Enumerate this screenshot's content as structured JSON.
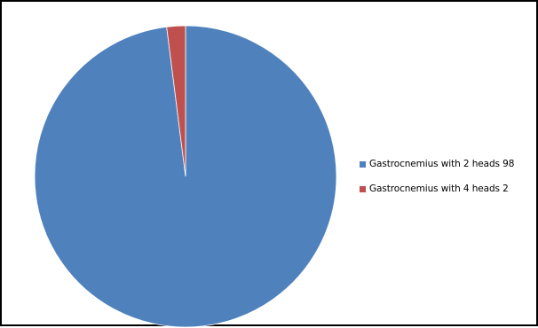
{
  "chart_data": {
    "type": "pie",
    "categories": [
      "Gastrocnemius with 2 heads",
      "Gastrocnemius with 4 heads"
    ],
    "values": [
      98,
      2
    ],
    "colors": [
      "#4F81BD",
      "#C0504D"
    ],
    "legend_labels": [
      "Gastrocnemius with 2 heads 98",
      "Gastrocnemius with 4 heads 2"
    ],
    "legend_position": "right",
    "start_angle": "top",
    "direction": "clockwise"
  }
}
